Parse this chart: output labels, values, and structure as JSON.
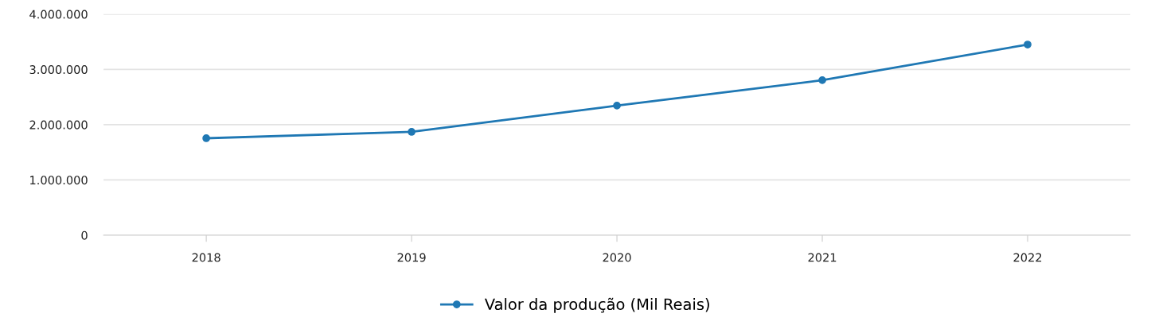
{
  "chart_data": {
    "type": "line",
    "categories": [
      "2018",
      "2019",
      "2020",
      "2021",
      "2022"
    ],
    "series": [
      {
        "name": "Valor da produção (Mil Reais)",
        "color": "#1f78b4",
        "values": [
          1755000,
          1870000,
          2345000,
          2805000,
          3450000
        ]
      }
    ],
    "ylim": [
      0,
      4000000
    ],
    "yticks": [
      0,
      {
        "value": 1000000,
        "label": "1.000.000"
      },
      {
        "value": 2000000,
        "label": "2.000.000"
      },
      {
        "value": 3000000,
        "label": "3.000.000"
      },
      {
        "value": 4000000,
        "label": "4.000.000"
      }
    ],
    "grid": "y",
    "legend": "bottom",
    "marker": "circle",
    "line_style": "solid"
  }
}
